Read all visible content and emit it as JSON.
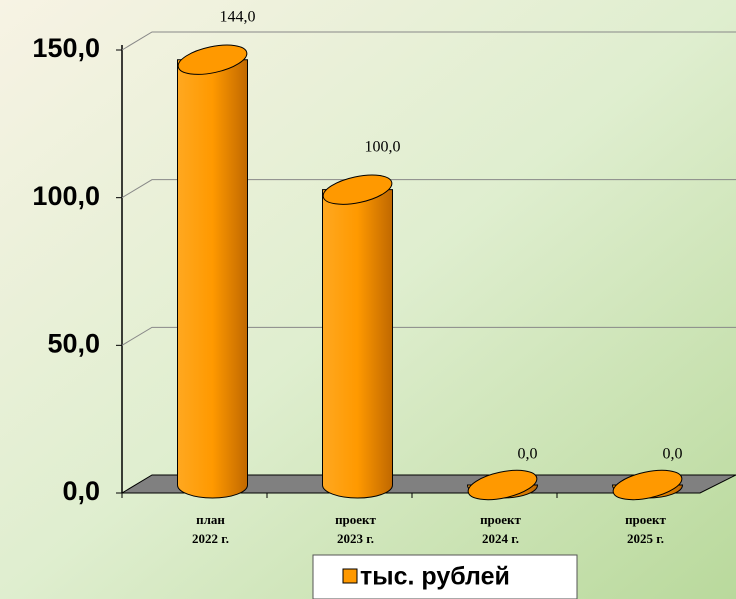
{
  "chart_data": {
    "type": "cylinder-bar",
    "categories": [
      [
        "план",
        "2022 г."
      ],
      [
        "проект",
        "2023 г."
      ],
      [
        "проект",
        "2024 г."
      ],
      [
        "проект",
        "2025 г."
      ]
    ],
    "series": [
      {
        "name": "тыс. рублей",
        "color": "#ff9900",
        "values": [
          144,
          100,
          0,
          0
        ],
        "value_labels": [
          "144,0",
          "100,0",
          "0,0",
          "0,0"
        ]
      }
    ],
    "ylim": [
      0,
      150
    ],
    "yticks": [
      {
        "value": 0,
        "label": "0,0"
      },
      {
        "value": 50,
        "label": "50,0"
      },
      {
        "value": 100,
        "label": "100,0"
      },
      {
        "value": 150,
        "label": "150,0"
      }
    ],
    "grid": true,
    "legend": "bottom"
  }
}
